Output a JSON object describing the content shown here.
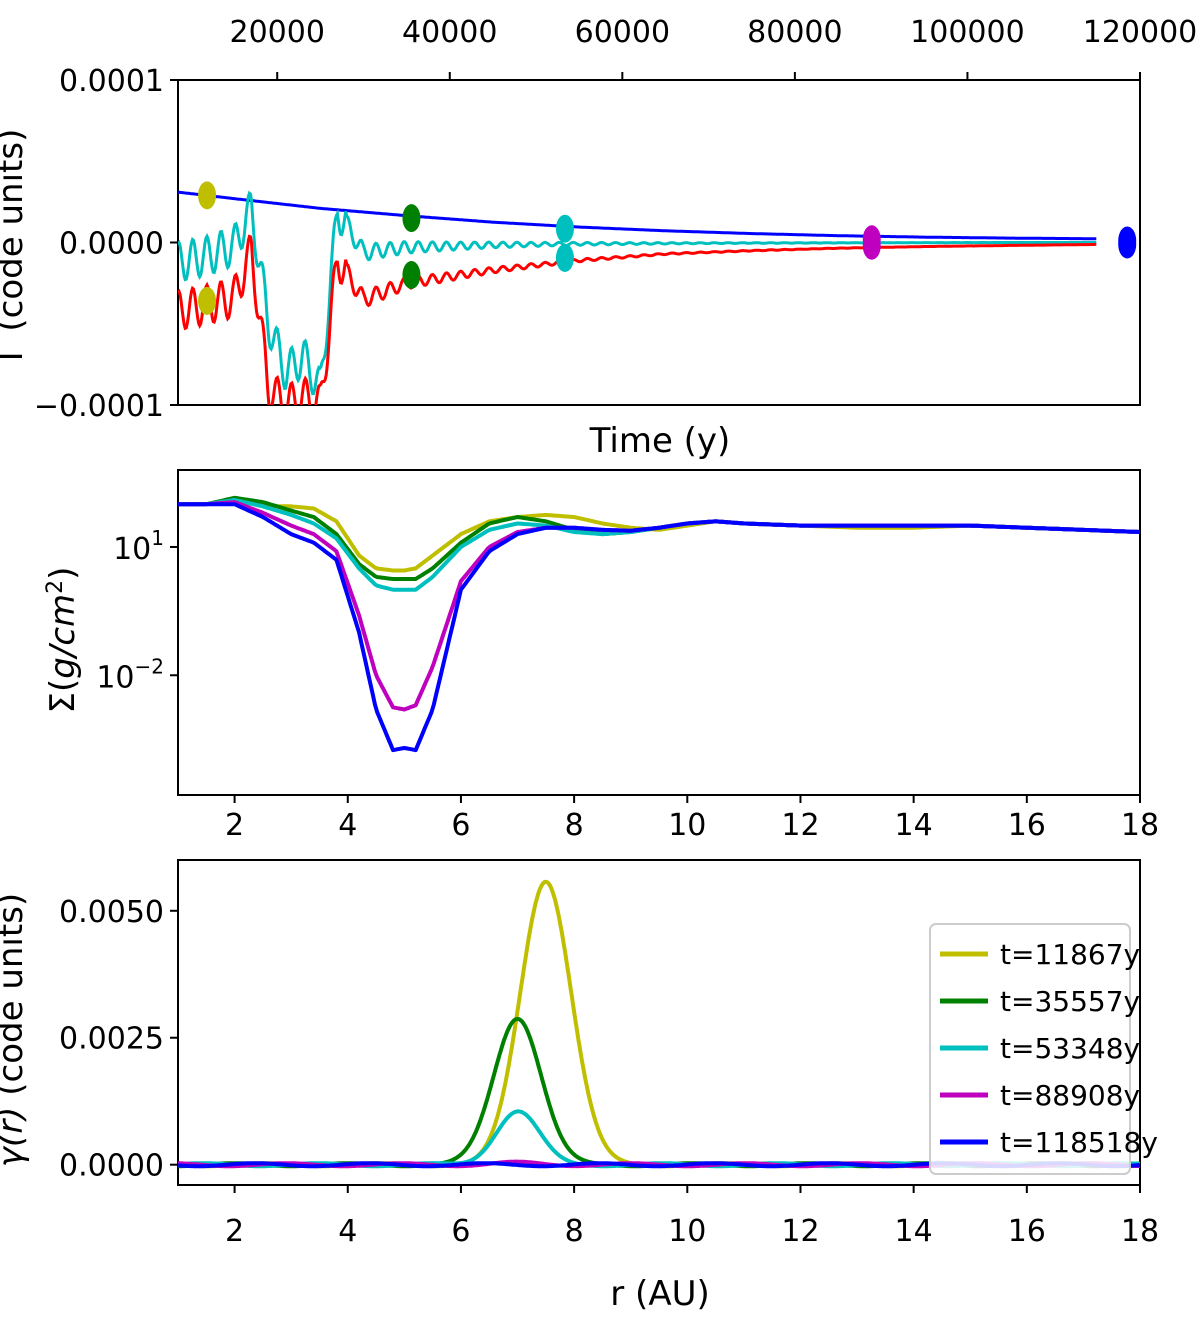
{
  "chart_data": [
    {
      "type": "line",
      "xlabel": "Time (y)",
      "ylabel": "Γ (code units)",
      "xlim": [
        8500,
        120000
      ],
      "ylim": [
        -0.0001,
        0.0001
      ],
      "xticks": [
        20000,
        40000,
        60000,
        80000,
        100000,
        120000
      ],
      "xtick_labels": [
        "20000",
        "40000",
        "60000",
        "80000",
        "100000",
        "120000"
      ],
      "yticks": [
        -0.0001,
        0.0,
        0.0001
      ],
      "ytick_labels": [
        "−0.0001",
        "0.0000",
        "0.0001"
      ],
      "x_axis_position": "top",
      "series": [
        {
          "color": "#0000ff",
          "x": [
            8500,
            15000,
            25000,
            35000,
            45000,
            55000,
            65000,
            75000,
            85000,
            95000,
            105000,
            115000
          ],
          "values": [
            3.1e-05,
            2.7e-05,
            2.1e-05,
            1.65e-05,
            1.25e-05,
            9.5e-06,
            7.2e-06,
            5.5e-06,
            4.2e-06,
            3.3e-06,
            2.7e-06,
            2.3e-06
          ]
        },
        {
          "color": "#00bfbf",
          "x": [
            8500,
            12000,
            15000,
            17000,
            19000,
            21000,
            23000,
            25000,
            27000,
            30000,
            35000,
            45000,
            55000,
            65000,
            75000,
            85000,
            95000,
            105000,
            115000
          ],
          "values": [
            -1.2e-05,
            -8e-06,
            -2e-06,
            2.1e-05,
            -5e-05,
            -8e-05,
            -7e-05,
            -9e-05,
            2e-05,
            -6e-06,
            -3e-06,
            -1.5e-06,
            -8e-07,
            -5e-07,
            -3e-07,
            -2e-07,
            -1e-07,
            0.0,
            0.0
          ]
        },
        {
          "color": "#ff0000",
          "x": [
            8500,
            12000,
            15000,
            17000,
            19000,
            21000,
            23000,
            25000,
            27000,
            30000,
            35000,
            45000,
            55000,
            65000,
            75000,
            85000,
            95000,
            105000,
            115000
          ],
          "values": [
            -4.2e-05,
            -3.8e-05,
            -3.4e-05,
            -5e-06,
            -9e-05,
            -0.0001,
            -9.5e-05,
            -0.0001,
            -1e-05,
            -3.5e-05,
            -2.5e-05,
            -1.7e-05,
            -1.1e-05,
            -7e-06,
            -5e-06,
            -3.5e-06,
            -2.5e-06,
            -1.8e-06,
            -1.2e-06
          ]
        }
      ],
      "markers": [
        {
          "color": "#bfbf00",
          "x": 11867,
          "values": [
            2.9e-05,
            -3.6e-05
          ]
        },
        {
          "color": "#008000",
          "x": 35557,
          "values": [
            1.5e-05,
            -2e-05
          ]
        },
        {
          "color": "#00bfbf",
          "x": 53348,
          "values": [
            8.5e-06,
            -9.5e-06
          ]
        },
        {
          "color": "#bf00bf",
          "x": 88908,
          "values": [
            2e-06,
            -2e-06
          ]
        },
        {
          "color": "#0000ff",
          "x": 118518,
          "values": [
            1.2e-06,
            -1.2e-06
          ]
        }
      ]
    },
    {
      "type": "line",
      "xlabel": "",
      "ylabel": "Σ(g/cm²)",
      "ylabel_parts": {
        "main": "Σ(",
        "unit": "g/cm",
        "exp": "2",
        "close": ")"
      },
      "yscale": "log",
      "xlim": [
        1,
        18
      ],
      "ylim_log10": [
        -4.8,
        2.8
      ],
      "xticks": [
        2,
        4,
        6,
        8,
        10,
        12,
        14,
        16,
        18
      ],
      "xtick_labels": [
        "2",
        "4",
        "6",
        "8",
        "10",
        "12",
        "14",
        "16",
        "18"
      ],
      "yticks_log10": [
        1,
        -2
      ],
      "ytick_labels": [
        {
          "base": "10",
          "exp": "1"
        },
        {
          "base": "10",
          "exp": "−2"
        }
      ],
      "r": [
        1,
        1.5,
        2,
        2.5,
        3,
        3.4,
        3.8,
        4.2,
        4.5,
        4.8,
        5.0,
        5.2,
        5.5,
        6.0,
        6.5,
        7.0,
        7.5,
        8.0,
        8.5,
        9.0,
        9.5,
        10,
        10.5,
        11,
        12,
        13,
        14,
        15,
        16,
        17,
        18
      ],
      "series": [
        {
          "color": "#bfbf00",
          "log10_values": [
            2.0,
            2.0,
            2.1,
            1.95,
            1.95,
            1.9,
            1.6,
            0.8,
            0.5,
            0.45,
            0.45,
            0.5,
            0.8,
            1.3,
            1.6,
            1.7,
            1.75,
            1.7,
            1.55,
            1.45,
            1.4,
            1.5,
            1.6,
            1.55,
            1.5,
            1.45,
            1.45,
            1.5,
            1.45,
            1.4,
            1.35
          ]
        },
        {
          "color": "#008000",
          "log10_values": [
            2.0,
            2.0,
            2.15,
            2.05,
            1.85,
            1.7,
            1.3,
            0.6,
            0.3,
            0.25,
            0.25,
            0.25,
            0.5,
            1.1,
            1.55,
            1.7,
            1.6,
            1.4,
            1.3,
            1.35,
            1.45,
            1.55,
            1.6,
            1.55,
            1.5,
            1.5,
            1.5,
            1.5,
            1.45,
            1.4,
            1.35
          ]
        },
        {
          "color": "#00bfbf",
          "log10_values": [
            2.0,
            2.0,
            2.1,
            1.95,
            1.75,
            1.55,
            1.2,
            0.5,
            0.1,
            0.0,
            0.0,
            0.0,
            0.3,
            1.0,
            1.4,
            1.55,
            1.5,
            1.35,
            1.3,
            1.35,
            1.45,
            1.55,
            1.6,
            1.55,
            1.5,
            1.5,
            1.5,
            1.5,
            1.45,
            1.4,
            1.35
          ]
        },
        {
          "color": "#bf00bf",
          "log10_values": [
            2.0,
            2.0,
            2.05,
            1.8,
            1.5,
            1.3,
            0.9,
            -0.6,
            -2.0,
            -2.75,
            -2.8,
            -2.7,
            -1.8,
            0.2,
            1.0,
            1.35,
            1.45,
            1.45,
            1.4,
            1.38,
            1.45,
            1.55,
            1.6,
            1.55,
            1.5,
            1.5,
            1.5,
            1.5,
            1.45,
            1.4,
            1.35
          ]
        },
        {
          "color": "#0000ff",
          "log10_values": [
            2.0,
            2.0,
            2.0,
            1.7,
            1.3,
            1.1,
            0.7,
            -1.0,
            -2.8,
            -3.75,
            -3.7,
            -3.75,
            -2.8,
            0.0,
            0.9,
            1.3,
            1.45,
            1.45,
            1.4,
            1.38,
            1.45,
            1.55,
            1.6,
            1.55,
            1.5,
            1.5,
            1.5,
            1.5,
            1.45,
            1.4,
            1.35
          ]
        }
      ]
    },
    {
      "type": "line",
      "xlabel": "r (AU)",
      "ylabel": "γ(r) (code units)",
      "ylabel_parts": {
        "italic": "γ(r)",
        "rest": " (code units)"
      },
      "xlim": [
        1,
        18
      ],
      "ylim": [
        -0.0004,
        0.006
      ],
      "xticks": [
        2,
        4,
        6,
        8,
        10,
        12,
        14,
        16,
        18
      ],
      "xtick_labels": [
        "2",
        "4",
        "6",
        "8",
        "10",
        "12",
        "14",
        "16",
        "18"
      ],
      "yticks": [
        0.0,
        0.0025,
        0.005
      ],
      "ytick_labels": [
        "0.0000",
        "0.0025",
        "0.0050"
      ],
      "legend_position": "right",
      "series": [
        {
          "name": "t=11867y",
          "color": "#bfbf00",
          "peak_r": 7.5,
          "peak": 0.0056,
          "width": 0.45
        },
        {
          "name": "t=35557y",
          "color": "#008000",
          "peak_r": 7.0,
          "peak": 0.0029,
          "width": 0.42
        },
        {
          "name": "t=53348y",
          "color": "#00bfbf",
          "peak_r": 7.0,
          "peak": 0.00105,
          "width": 0.38
        },
        {
          "name": "t=88908y",
          "color": "#bf00bf",
          "peak_r": 7.0,
          "peak": 3e-05,
          "width": 0.4
        },
        {
          "name": "t=118518y",
          "color": "#0000ff",
          "peak_r": 7.0,
          "peak": 0.0,
          "width": 0.4
        }
      ]
    }
  ]
}
